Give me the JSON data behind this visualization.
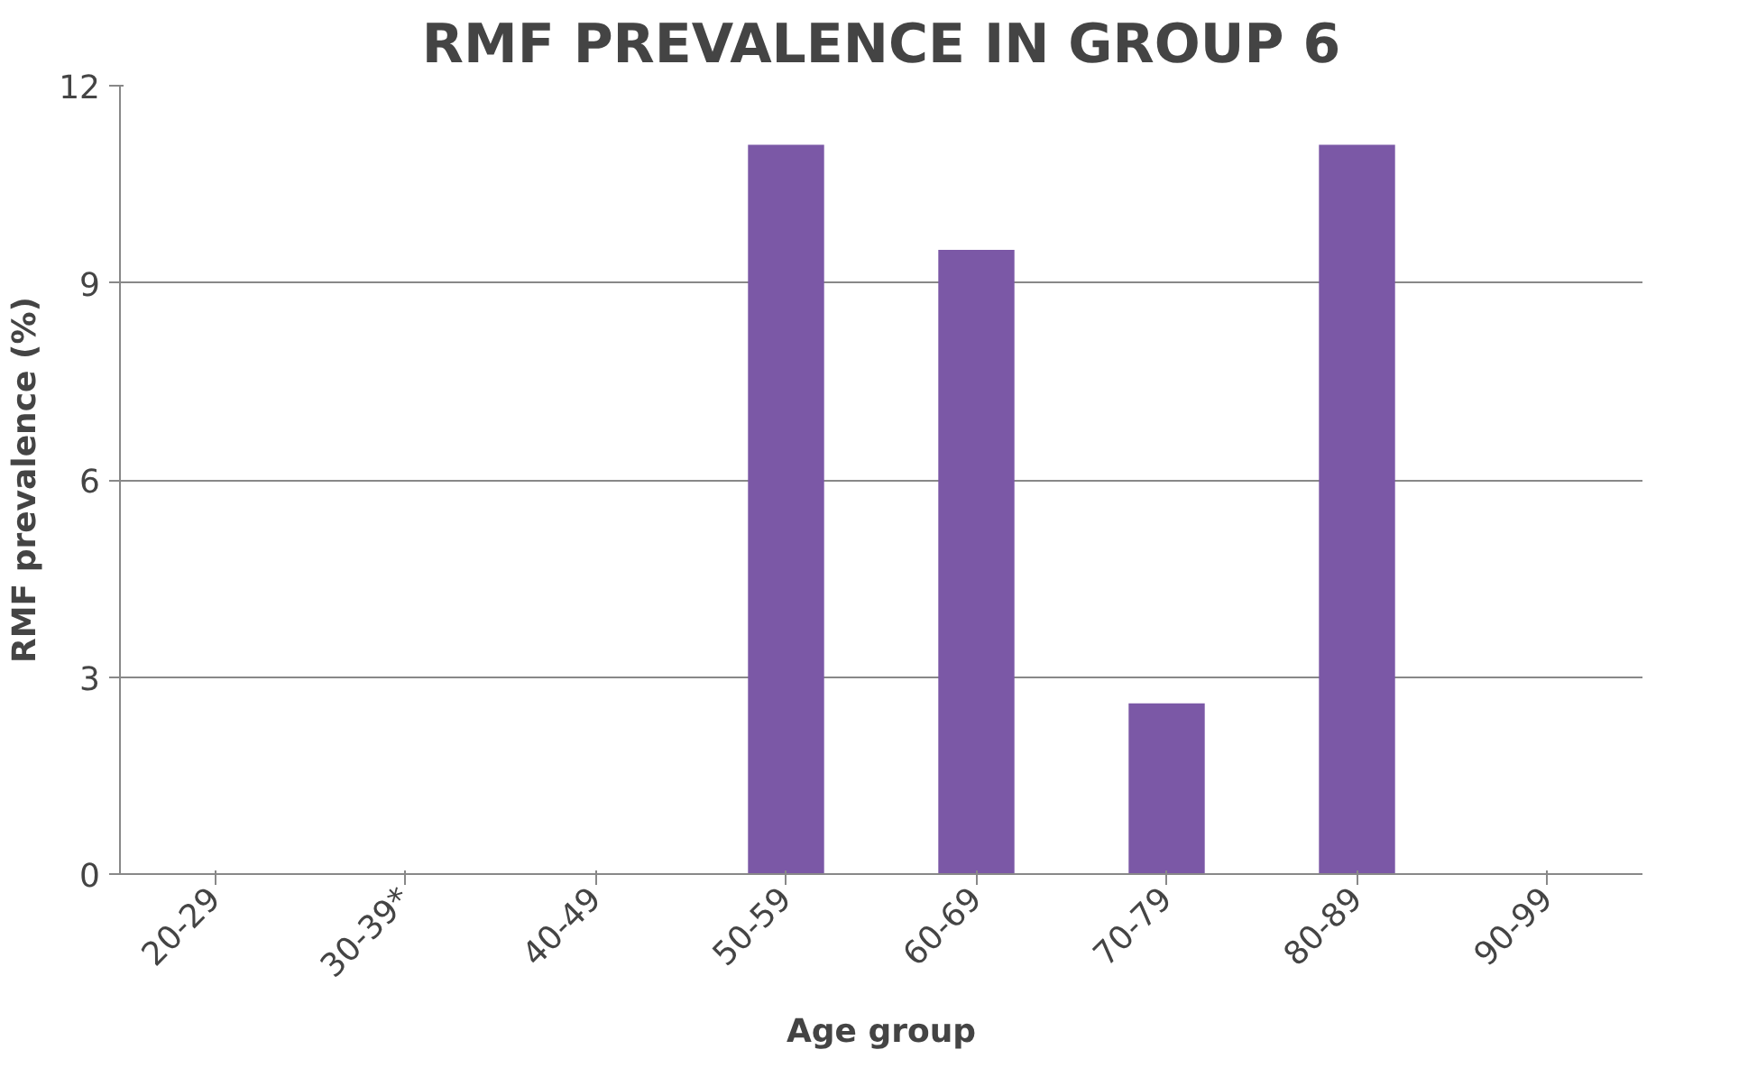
{
  "chart_data": {
    "type": "bar",
    "title": "RMF PREVALENCE IN GROUP 6",
    "xlabel": "Age group",
    "ylabel": "RMF prevalence (%)",
    "categories": [
      "20-29",
      "30-39*",
      "40-49",
      "50-59",
      "60-69",
      "70-79",
      "80-89",
      "90-99"
    ],
    "values": [
      0,
      0,
      0,
      11.1,
      9.5,
      2.6,
      11.1,
      0
    ],
    "color": "#7b58a6",
    "ylim": [
      0,
      12
    ],
    "yticks": [
      0,
      3,
      6,
      9,
      12
    ],
    "grid": "y"
  }
}
